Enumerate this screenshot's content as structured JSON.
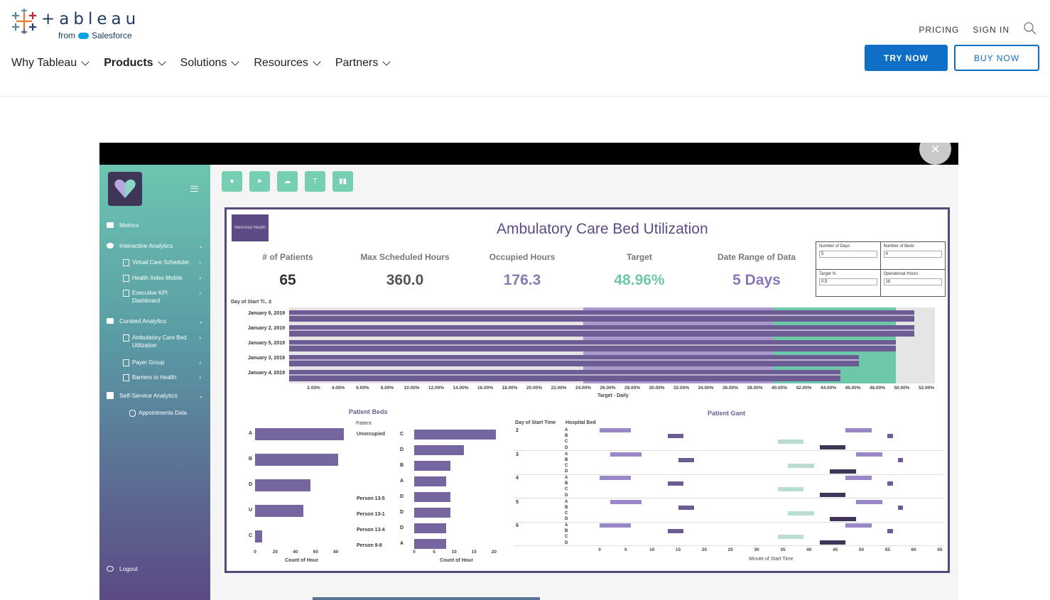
{
  "header": {
    "logo_text": "+ableau",
    "logo_from": "from",
    "logo_salesforce": "Salesforce",
    "utility": {
      "pricing": "PRICING",
      "sign_in": "SIGN IN"
    },
    "nav": [
      {
        "label": "Why Tableau"
      },
      {
        "label": "Products"
      },
      {
        "label": "Solutions"
      },
      {
        "label": "Resources"
      },
      {
        "label": "Partners"
      }
    ],
    "try_now": "TRY NOW",
    "buy_now": "BUY NOW"
  },
  "sidebar": {
    "items": [
      {
        "label": "Metrics"
      },
      {
        "label": "Interactive Analytics"
      },
      {
        "label": "Virtual Care Scheduler"
      },
      {
        "label": "Health Index Mobile"
      },
      {
        "label": "Executive KPI Dashboard"
      },
      {
        "label": "Curated Analytics"
      },
      {
        "label": "Ambulatory Care Bed Utilization"
      },
      {
        "label": "Payer Group"
      },
      {
        "label": "Barriers to Health"
      },
      {
        "label": "Self-Service Analytics"
      },
      {
        "label": "Appointments Data"
      },
      {
        "label": "Logout"
      }
    ]
  },
  "dashboard": {
    "logo_caption": "Memorial Health",
    "title": "Ambulatory Care Bed Utilization",
    "kpis": [
      {
        "label": "# of Patients",
        "value": "65",
        "color": "#333333"
      },
      {
        "label": "Max Scheduled Hours",
        "value": "360.0",
        "color": "#555555"
      },
      {
        "label": "Occupied Hours",
        "value": "176.3",
        "color": "#8a78b5"
      },
      {
        "label": "Target",
        "value": "48.96%",
        "color": "#6cc8a8"
      },
      {
        "label": "Date Range of Data",
        "value": "5 Days",
        "color": "#8a78b5"
      }
    ],
    "params": [
      {
        "label": "Number of Days",
        "value": "5"
      },
      {
        "label": "Number of Beds",
        "value": "4"
      },
      {
        "label": "Target %",
        "value": "0.5"
      },
      {
        "label": "Operational Hours",
        "value": "18"
      }
    ],
    "util_dim_label": "Day of Start Ti..",
    "patient_beds_title": "Patient Beds",
    "patient_col": "Patient",
    "unoccupied": "Unoccupied",
    "gant_title": "Patient Gant",
    "gant_dim1": "Day of Start Time",
    "gant_dim2": "Hospital Bed",
    "count_of_hour": "Count of Hour",
    "minute_label": "Minute of Start Time",
    "persons": [
      "Person 13-5",
      "Person 13-1",
      "Person 13-4",
      "Person 9-8"
    ],
    "inner_bed_labels": [
      "C",
      "D",
      "B",
      "A",
      "D",
      "D",
      "D",
      "A"
    ],
    "gant_days": [
      "2",
      "3",
      "4",
      "5",
      "6"
    ],
    "gant_bed_letters": [
      "A",
      "B",
      "C",
      "D"
    ]
  },
  "chart_data": [
    {
      "type": "bar",
      "title": "",
      "xlabel": "Target - Daily",
      "ylabel": "Day of Start Ti..",
      "categories": [
        "January 6, 2019",
        "January 2, 2019",
        "January 5, 2019",
        "January 3, 2019",
        "January 4, 2019"
      ],
      "values": [
        51.0,
        51.0,
        49.5,
        46.5,
        45.0
      ],
      "xlim": [
        0,
        52
      ],
      "x_ticks": [
        "2.00%",
        "4.00%",
        "6.00%",
        "8.00%",
        "10.00%",
        "12.00%",
        "14.00%",
        "16.00%",
        "18.00%",
        "20.00%",
        "22.00%",
        "24.00%",
        "26.00%",
        "28.00%",
        "30.00%",
        "32.00%",
        "34.00%",
        "36.00%",
        "38.00%",
        "40.00%",
        "42.00%",
        "44.00%",
        "46.00%",
        "48.00%",
        "50.00%",
        "52.00%"
      ]
    },
    {
      "type": "bar",
      "title": "Patient Beds",
      "xlabel": "Count of Hour",
      "categories": [
        "A",
        "B",
        "D",
        "U",
        "C"
      ],
      "values": [
        88,
        82,
        55,
        48,
        7
      ],
      "xlim": [
        0,
        90
      ],
      "x_ticks": [
        "0",
        "20",
        "40",
        "60",
        "80"
      ]
    },
    {
      "type": "bar",
      "title": "",
      "xlabel": "Count of Hour",
      "categories": [
        "Unoccupied C",
        "Unoccupied D",
        "Unoccupied B",
        "Unoccupied A",
        "Person 13-5 D",
        "Person 13-1 D",
        "Person 13-4 D",
        "Person 9-8 A"
      ],
      "values": [
        20.5,
        12.5,
        9.0,
        8.0,
        9.0,
        9.0,
        8.0,
        8.0
      ],
      "xlim": [
        0,
        21
      ],
      "x_ticks": [
        "0",
        "5",
        "10",
        "15",
        "20"
      ]
    },
    {
      "type": "gantt",
      "title": "Patient Gant",
      "xlabel": "Minute of Start Time",
      "xlim": [
        0,
        65
      ],
      "x_ticks": [
        "0",
        "5",
        "10",
        "15",
        "20",
        "25",
        "30",
        "35",
        "40",
        "45",
        "50",
        "55",
        "60",
        "65"
      ]
    }
  ]
}
